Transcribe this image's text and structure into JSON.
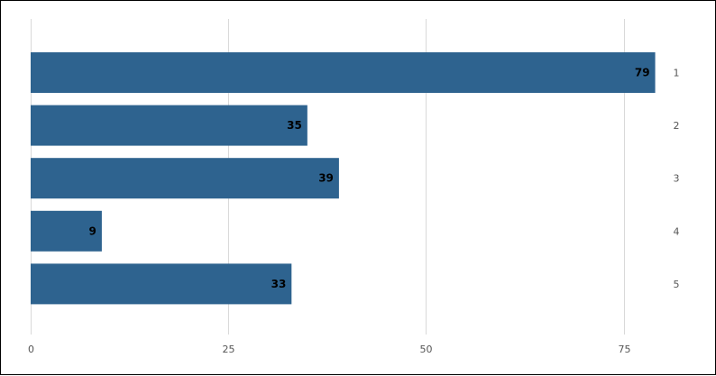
{
  "chart_data": {
    "type": "bar",
    "orientation": "horizontal",
    "title": "",
    "xlabel": "",
    "ylabel": "",
    "categories": [
      "1",
      "2",
      "3",
      "4",
      "5"
    ],
    "values": [
      79,
      35,
      39,
      9,
      33
    ],
    "xlim": [
      0,
      80
    ],
    "x_ticks": [
      0,
      25,
      50,
      75
    ],
    "grid": true,
    "legend": "none",
    "category_axis_position": "right",
    "show_data_labels": true,
    "bar_color": "#2e638f"
  }
}
